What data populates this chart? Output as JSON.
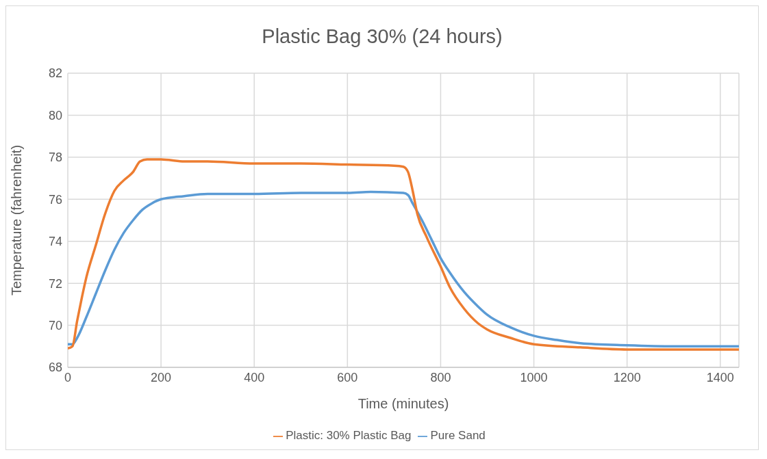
{
  "chart_data": {
    "type": "line",
    "title": "Plastic Bag 30% (24 hours)",
    "xlabel": "Time (minutes)",
    "ylabel": "Temperature (fahrenheit)",
    "xlim": [
      0,
      1440
    ],
    "xticks": [
      0,
      200,
      400,
      600,
      800,
      1000,
      1200,
      1400
    ],
    "ylim": [
      68,
      82
    ],
    "yticks": [
      68,
      70,
      72,
      74,
      76,
      78,
      80,
      82
    ],
    "grid": true,
    "legend": "bottom",
    "marker": "none",
    "line_style": "solid",
    "series": [
      {
        "name": "Pure Sand",
        "color": "#5b9bd5",
        "x": [
          0,
          10,
          20,
          40,
          60,
          80,
          100,
          120,
          140,
          160,
          180,
          200,
          250,
          300,
          400,
          500,
          600,
          650,
          720,
          730,
          740,
          760,
          780,
          800,
          820,
          850,
          880,
          900,
          950,
          1000,
          1050,
          1100,
          1200,
          1300,
          1440
        ],
        "values": [
          69.1,
          69.1,
          69.4,
          70.4,
          71.5,
          72.6,
          73.6,
          74.4,
          75.0,
          75.5,
          75.8,
          76.0,
          76.15,
          76.25,
          76.25,
          76.3,
          76.3,
          76.35,
          76.3,
          76.2,
          75.8,
          75.0,
          74.1,
          73.2,
          72.5,
          71.6,
          70.9,
          70.5,
          69.9,
          69.5,
          69.3,
          69.15,
          69.05,
          69.0,
          69.0
        ]
      },
      {
        "name": "Plastic: 30% Plastic Bag",
        "color": "#ed7d31",
        "x": [
          0,
          10,
          20,
          30,
          40,
          60,
          80,
          100,
          120,
          140,
          155,
          170,
          200,
          250,
          300,
          400,
          500,
          600,
          700,
          720,
          730,
          740,
          750,
          770,
          800,
          820,
          850,
          880,
          900,
          950,
          1000,
          1100,
          1200,
          1300,
          1440
        ],
        "values": [
          68.9,
          69.0,
          70.2,
          71.3,
          72.3,
          73.8,
          75.3,
          76.4,
          76.9,
          77.3,
          77.8,
          77.9,
          77.9,
          77.8,
          77.8,
          77.7,
          77.7,
          77.65,
          77.6,
          77.55,
          77.3,
          76.4,
          75.3,
          74.2,
          72.8,
          71.8,
          70.8,
          70.1,
          69.8,
          69.4,
          69.1,
          68.95,
          68.85,
          68.85,
          68.85
        ]
      }
    ]
  }
}
